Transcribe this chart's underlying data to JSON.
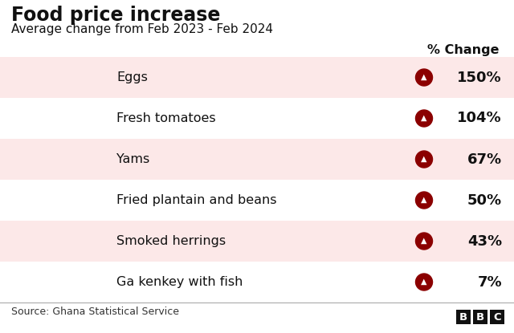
{
  "title": "Food price increase",
  "subtitle": "Average change from Feb 2023 - Feb 2024",
  "col_header": "% Change",
  "items": [
    {
      "label": "Eggs",
      "value": "150%"
    },
    {
      "label": "Fresh tomatoes",
      "value": "104%"
    },
    {
      "label": "Yams",
      "value": "67%"
    },
    {
      "label": "Fried plantain and beans",
      "value": "50%"
    },
    {
      "label": "Smoked herrings",
      "value": "43%"
    },
    {
      "label": "Ga kenkey with fish",
      "value": "7%"
    }
  ],
  "row_colors": [
    "#fce8e8",
    "#ffffff"
  ],
  "bg_color": "#ffffff",
  "title_fontsize": 17,
  "subtitle_fontsize": 11,
  "item_fontsize": 11.5,
  "value_fontsize": 13,
  "header_fontsize": 11.5,
  "arrow_color": "#8b0000",
  "source_text": "Source: Ghana Statistical Service",
  "bbc_letters": [
    "B",
    "B",
    "C"
  ],
  "footer_fontsize": 9,
  "separator_color": "#aaaaaa",
  "title_color": "#111111",
  "text_color": "#111111",
  "source_color": "#333333"
}
